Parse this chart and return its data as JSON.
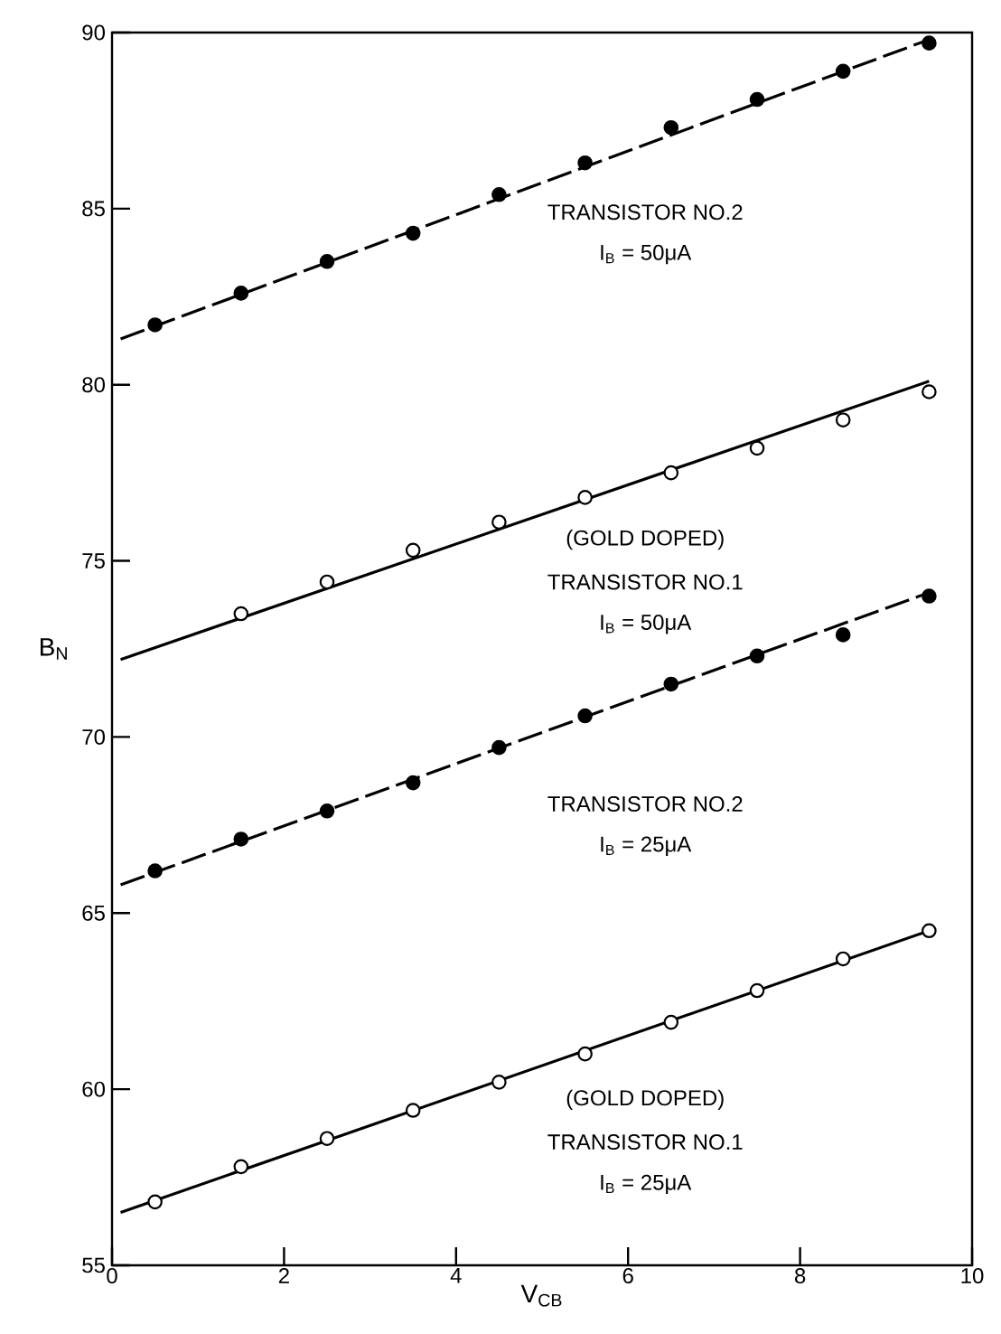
{
  "chart_data": {
    "type": "scatter",
    "xlabel": "V$_{CB}$",
    "ylabel": "B$_{N}$",
    "xlim": [
      0,
      10
    ],
    "xticks": [
      0,
      2,
      4,
      6,
      8,
      10
    ],
    "ylim": [
      55,
      90
    ],
    "yticks": [
      55,
      60,
      65,
      70,
      75,
      80,
      85,
      90
    ],
    "series": [
      {
        "type": "line",
        "color": "#000000",
        "line_style": "dashed",
        "marker": "none",
        "x": [
          0.1,
          9.5
        ],
        "values": [
          81.3,
          89.8
        ]
      },
      {
        "type": "line",
        "color": "#000000",
        "line_style": "solid",
        "marker": "none",
        "x": [
          0.1,
          9.5
        ],
        "values": [
          72.2,
          80.1
        ]
      },
      {
        "type": "line",
        "color": "#000000",
        "line_style": "dashed",
        "marker": "none",
        "x": [
          0.1,
          9.5
        ],
        "values": [
          65.8,
          74.1
        ]
      },
      {
        "type": "line",
        "color": "#000000",
        "line_style": "solid",
        "marker": "none",
        "x": [
          0.1,
          9.5
        ],
        "values": [
          56.5,
          64.5
        ]
      },
      {
        "color": "#000000",
        "marker": "circle",
        "x": [
          0.5,
          1.5,
          2.5,
          3.5,
          4.5,
          5.5,
          6.5,
          7.5,
          8.5,
          9.5
        ],
        "values": [
          81.7,
          82.6,
          83.5,
          84.3,
          85.4,
          86.3,
          87.3,
          88.1,
          88.9,
          89.7
        ]
      },
      {
        "color": "#ffffff",
        "marker": "circle",
        "x": [
          1.5,
          2.5,
          3.5,
          4.5,
          5.5,
          6.5,
          7.5,
          8.5,
          9.5
        ],
        "values": [
          73.5,
          74.4,
          75.3,
          76.1,
          76.8,
          77.5,
          78.2,
          79.0,
          79.8
        ]
      },
      {
        "color": "#000000",
        "marker": "circle",
        "x": [
          0.5,
          1.5,
          2.5,
          3.5,
          4.5,
          5.5,
          6.5,
          7.5,
          8.5,
          9.5
        ],
        "values": [
          66.2,
          67.1,
          67.9,
          68.7,
          69.7,
          70.6,
          71.5,
          72.3,
          72.9,
          74.0
        ]
      },
      {
        "color": "#ffffff",
        "marker": "circle",
        "x": [
          0.5,
          1.5,
          2.5,
          3.5,
          4.5,
          5.5,
          6.5,
          7.5,
          8.5,
          9.5
        ],
        "values": [
          56.8,
          57.8,
          58.6,
          59.4,
          60.2,
          61.0,
          61.9,
          62.8,
          63.7,
          64.5
        ]
      }
    ],
    "annotations": [
      "TRANSISTOR NO.2",
      "I$_{B}$ = 50μA",
      "(GOLD DOPED)",
      "TRANSISTOR NO.1",
      "I$_{B}$ = 50μA",
      "TRANSISTOR NO.2",
      "I$_{B}$ = 25μA",
      "(GOLD DOPED)",
      "TRANSISTOR NO.1",
      "I$_{B}$ = 25μA"
    ]
  }
}
